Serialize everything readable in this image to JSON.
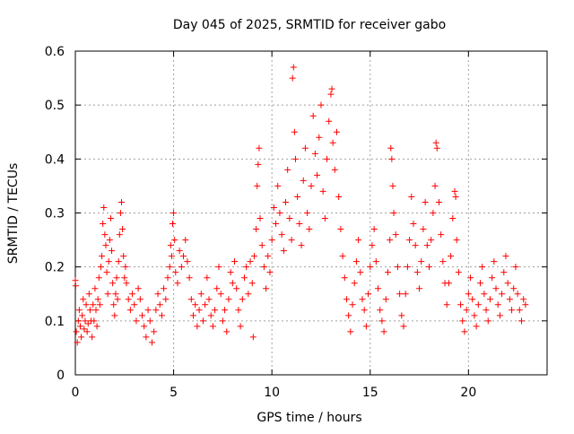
{
  "chart_data": {
    "type": "scatter",
    "title": "Day 045 of 2025, SRMTID for receiver gabo",
    "xlabel": "GPS time / hours",
    "ylabel": "SRMTID / TECUs",
    "xlim": [
      0,
      24
    ],
    "ylim": [
      0,
      0.6
    ],
    "x_ticks": [
      0,
      5,
      10,
      15,
      20
    ],
    "x_tick_labels": [
      "0",
      "5",
      "10",
      "15",
      "20"
    ],
    "y_ticks": [
      0,
      0.1,
      0.2,
      0.3,
      0.4,
      0.5,
      0.6
    ],
    "y_tick_labels": [
      "0",
      "0.1",
      "0.2",
      "0.3",
      "0.4",
      "0.5",
      "0.6"
    ],
    "grid": true,
    "marker": "+",
    "series": [
      {
        "name": "SRMTID",
        "color": "#ff0000",
        "points": [
          [
            0.0,
            0.175
          ],
          [
            0.02,
            0.165
          ],
          [
            0.05,
            0.08
          ],
          [
            0.1,
            0.06
          ],
          [
            0.15,
            0.1
          ],
          [
            0.2,
            0.12
          ],
          [
            0.25,
            0.09
          ],
          [
            0.3,
            0.07
          ],
          [
            0.35,
            0.11
          ],
          [
            0.4,
            0.14
          ],
          [
            0.45,
            0.085
          ],
          [
            0.5,
            0.1
          ],
          [
            0.55,
            0.13
          ],
          [
            0.6,
            0.08
          ],
          [
            0.65,
            0.095
          ],
          [
            0.7,
            0.15
          ],
          [
            0.75,
            0.12
          ],
          [
            0.8,
            0.1
          ],
          [
            0.85,
            0.07
          ],
          [
            0.9,
            0.13
          ],
          [
            0.95,
            0.1
          ],
          [
            1.0,
            0.16
          ],
          [
            1.05,
            0.12
          ],
          [
            1.1,
            0.09
          ],
          [
            1.15,
            0.14
          ],
          [
            1.2,
            0.18
          ],
          [
            1.25,
            0.13
          ],
          [
            1.3,
            0.2
          ],
          [
            1.35,
            0.22
          ],
          [
            1.4,
            0.28
          ],
          [
            1.45,
            0.31
          ],
          [
            1.5,
            0.26
          ],
          [
            1.55,
            0.24
          ],
          [
            1.6,
            0.19
          ],
          [
            1.65,
            0.15
          ],
          [
            1.7,
            0.21
          ],
          [
            1.75,
            0.25
          ],
          [
            1.8,
            0.29
          ],
          [
            1.85,
            0.23
          ],
          [
            1.9,
            0.17
          ],
          [
            1.95,
            0.13
          ],
          [
            2.0,
            0.11
          ],
          [
            2.05,
            0.15
          ],
          [
            2.1,
            0.18
          ],
          [
            2.15,
            0.14
          ],
          [
            2.2,
            0.21
          ],
          [
            2.25,
            0.26
          ],
          [
            2.3,
            0.3
          ],
          [
            2.35,
            0.32
          ],
          [
            2.4,
            0.27
          ],
          [
            2.45,
            0.22
          ],
          [
            2.5,
            0.18
          ],
          [
            2.55,
            0.2
          ],
          [
            2.6,
            0.17
          ],
          [
            2.7,
            0.14
          ],
          [
            2.8,
            0.12
          ],
          [
            2.9,
            0.15
          ],
          [
            3.0,
            0.13
          ],
          [
            3.1,
            0.1
          ],
          [
            3.2,
            0.16
          ],
          [
            3.3,
            0.14
          ],
          [
            3.4,
            0.11
          ],
          [
            3.5,
            0.09
          ],
          [
            3.6,
            0.07
          ],
          [
            3.7,
            0.12
          ],
          [
            3.8,
            0.1
          ],
          [
            3.9,
            0.06
          ],
          [
            4.0,
            0.08
          ],
          [
            4.1,
            0.12
          ],
          [
            4.2,
            0.15
          ],
          [
            4.3,
            0.13
          ],
          [
            4.4,
            0.11
          ],
          [
            4.5,
            0.16
          ],
          [
            4.6,
            0.14
          ],
          [
            4.7,
            0.18
          ],
          [
            4.8,
            0.2
          ],
          [
            4.85,
            0.24
          ],
          [
            4.9,
            0.22
          ],
          [
            4.95,
            0.28
          ],
          [
            5.0,
            0.3
          ],
          [
            5.05,
            0.25
          ],
          [
            5.1,
            0.19
          ],
          [
            5.2,
            0.17
          ],
          [
            5.3,
            0.23
          ],
          [
            5.4,
            0.2
          ],
          [
            5.5,
            0.22
          ],
          [
            5.6,
            0.25
          ],
          [
            5.7,
            0.21
          ],
          [
            5.8,
            0.18
          ],
          [
            5.9,
            0.14
          ],
          [
            6.0,
            0.11
          ],
          [
            6.1,
            0.13
          ],
          [
            6.2,
            0.09
          ],
          [
            6.3,
            0.12
          ],
          [
            6.4,
            0.15
          ],
          [
            6.5,
            0.1
          ],
          [
            6.6,
            0.13
          ],
          [
            6.7,
            0.18
          ],
          [
            6.8,
            0.14
          ],
          [
            6.9,
            0.11
          ],
          [
            7.0,
            0.09
          ],
          [
            7.1,
            0.12
          ],
          [
            7.2,
            0.16
          ],
          [
            7.3,
            0.2
          ],
          [
            7.4,
            0.15
          ],
          [
            7.5,
            0.1
          ],
          [
            7.6,
            0.12
          ],
          [
            7.7,
            0.08
          ],
          [
            7.8,
            0.14
          ],
          [
            7.9,
            0.19
          ],
          [
            8.0,
            0.17
          ],
          [
            8.1,
            0.21
          ],
          [
            8.2,
            0.16
          ],
          [
            8.3,
            0.12
          ],
          [
            8.4,
            0.09
          ],
          [
            8.5,
            0.14
          ],
          [
            8.6,
            0.18
          ],
          [
            8.7,
            0.2
          ],
          [
            8.8,
            0.15
          ],
          [
            8.9,
            0.21
          ],
          [
            9.0,
            0.17
          ],
          [
            9.05,
            0.07
          ],
          [
            9.1,
            0.22
          ],
          [
            9.2,
            0.27
          ],
          [
            9.25,
            0.35
          ],
          [
            9.3,
            0.39
          ],
          [
            9.35,
            0.42
          ],
          [
            9.4,
            0.29
          ],
          [
            9.5,
            0.24
          ],
          [
            9.6,
            0.2
          ],
          [
            9.7,
            0.16
          ],
          [
            9.8,
            0.22
          ],
          [
            9.9,
            0.19
          ],
          [
            10.0,
            0.25
          ],
          [
            10.1,
            0.31
          ],
          [
            10.2,
            0.28
          ],
          [
            10.3,
            0.35
          ],
          [
            10.4,
            0.3
          ],
          [
            10.5,
            0.26
          ],
          [
            10.6,
            0.23
          ],
          [
            10.7,
            0.32
          ],
          [
            10.8,
            0.38
          ],
          [
            10.9,
            0.29
          ],
          [
            11.0,
            0.25
          ],
          [
            11.05,
            0.55
          ],
          [
            11.1,
            0.57
          ],
          [
            11.15,
            0.45
          ],
          [
            11.2,
            0.4
          ],
          [
            11.3,
            0.33
          ],
          [
            11.4,
            0.28
          ],
          [
            11.5,
            0.24
          ],
          [
            11.6,
            0.36
          ],
          [
            11.7,
            0.42
          ],
          [
            11.8,
            0.3
          ],
          [
            11.9,
            0.27
          ],
          [
            12.0,
            0.35
          ],
          [
            12.1,
            0.48
          ],
          [
            12.2,
            0.41
          ],
          [
            12.3,
            0.37
          ],
          [
            12.4,
            0.44
          ],
          [
            12.5,
            0.5
          ],
          [
            12.6,
            0.34
          ],
          [
            12.7,
            0.29
          ],
          [
            12.8,
            0.4
          ],
          [
            12.9,
            0.47
          ],
          [
            13.0,
            0.52
          ],
          [
            13.05,
            0.53
          ],
          [
            13.1,
            0.43
          ],
          [
            13.2,
            0.38
          ],
          [
            13.3,
            0.45
          ],
          [
            13.4,
            0.33
          ],
          [
            13.5,
            0.27
          ],
          [
            13.6,
            0.22
          ],
          [
            13.7,
            0.18
          ],
          [
            13.8,
            0.14
          ],
          [
            13.9,
            0.11
          ],
          [
            14.0,
            0.08
          ],
          [
            14.1,
            0.13
          ],
          [
            14.2,
            0.17
          ],
          [
            14.3,
            0.21
          ],
          [
            14.4,
            0.25
          ],
          [
            14.5,
            0.19
          ],
          [
            14.6,
            0.14
          ],
          [
            14.7,
            0.12
          ],
          [
            14.8,
            0.09
          ],
          [
            14.9,
            0.15
          ],
          [
            15.0,
            0.2
          ],
          [
            15.1,
            0.24
          ],
          [
            15.2,
            0.27
          ],
          [
            15.3,
            0.21
          ],
          [
            15.4,
            0.16
          ],
          [
            15.5,
            0.12
          ],
          [
            15.6,
            0.1
          ],
          [
            15.7,
            0.08
          ],
          [
            15.8,
            0.14
          ],
          [
            15.9,
            0.19
          ],
          [
            16.0,
            0.25
          ],
          [
            16.05,
            0.42
          ],
          [
            16.1,
            0.4
          ],
          [
            16.15,
            0.35
          ],
          [
            16.2,
            0.3
          ],
          [
            16.3,
            0.26
          ],
          [
            16.4,
            0.2
          ],
          [
            16.5,
            0.15
          ],
          [
            16.6,
            0.11
          ],
          [
            16.7,
            0.09
          ],
          [
            16.8,
            0.15
          ],
          [
            16.9,
            0.2
          ],
          [
            17.0,
            0.25
          ],
          [
            17.1,
            0.33
          ],
          [
            17.2,
            0.28
          ],
          [
            17.3,
            0.24
          ],
          [
            17.4,
            0.19
          ],
          [
            17.5,
            0.16
          ],
          [
            17.6,
            0.21
          ],
          [
            17.7,
            0.27
          ],
          [
            17.8,
            0.32
          ],
          [
            17.9,
            0.24
          ],
          [
            18.0,
            0.2
          ],
          [
            18.1,
            0.25
          ],
          [
            18.2,
            0.3
          ],
          [
            18.3,
            0.35
          ],
          [
            18.35,
            0.43
          ],
          [
            18.4,
            0.42
          ],
          [
            18.5,
            0.32
          ],
          [
            18.6,
            0.26
          ],
          [
            18.7,
            0.21
          ],
          [
            18.8,
            0.17
          ],
          [
            18.9,
            0.13
          ],
          [
            19.0,
            0.17
          ],
          [
            19.1,
            0.22
          ],
          [
            19.2,
            0.29
          ],
          [
            19.3,
            0.34
          ],
          [
            19.35,
            0.33
          ],
          [
            19.4,
            0.25
          ],
          [
            19.5,
            0.19
          ],
          [
            19.6,
            0.13
          ],
          [
            19.7,
            0.1
          ],
          [
            19.8,
            0.08
          ],
          [
            19.9,
            0.12
          ],
          [
            20.0,
            0.15
          ],
          [
            20.1,
            0.18
          ],
          [
            20.2,
            0.14
          ],
          [
            20.3,
            0.11
          ],
          [
            20.4,
            0.09
          ],
          [
            20.5,
            0.13
          ],
          [
            20.6,
            0.17
          ],
          [
            20.7,
            0.2
          ],
          [
            20.8,
            0.15
          ],
          [
            20.9,
            0.12
          ],
          [
            21.0,
            0.1
          ],
          [
            21.1,
            0.14
          ],
          [
            21.2,
            0.18
          ],
          [
            21.3,
            0.21
          ],
          [
            21.4,
            0.16
          ],
          [
            21.5,
            0.13
          ],
          [
            21.6,
            0.11
          ],
          [
            21.7,
            0.15
          ],
          [
            21.8,
            0.19
          ],
          [
            21.9,
            0.22
          ],
          [
            22.0,
            0.17
          ],
          [
            22.1,
            0.14
          ],
          [
            22.2,
            0.12
          ],
          [
            22.3,
            0.16
          ],
          [
            22.4,
            0.2
          ],
          [
            22.5,
            0.15
          ],
          [
            22.6,
            0.12
          ],
          [
            22.7,
            0.1
          ],
          [
            22.8,
            0.14
          ],
          [
            22.9,
            0.13
          ]
        ]
      }
    ]
  }
}
